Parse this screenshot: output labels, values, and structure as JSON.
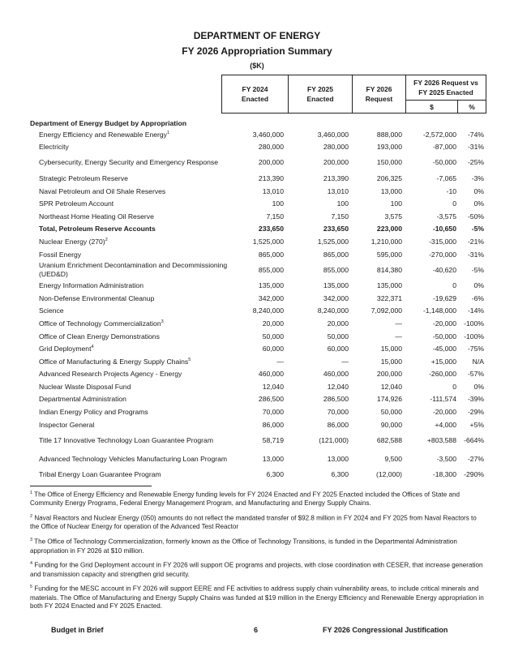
{
  "header": {
    "agency": "DEPARTMENT OF ENERGY",
    "title": "FY 2026 Appropriation Summary",
    "units": "($K)"
  },
  "columns": {
    "fy2024": "FY 2024\nEnacted",
    "fy2025": "FY 2025\nEnacted",
    "fy2026": "FY 2026\nRequest",
    "variance": "FY 2026 Request vs FY 2025 Enacted",
    "var_dollar": "$",
    "var_pct": "%"
  },
  "section_title": "Department of Energy Budget by Appropriation",
  "rows": [
    {
      "label": "Energy Efficiency and Renewable Energy",
      "sup": "1",
      "v": [
        "3,460,000",
        "3,460,000",
        "888,000",
        "-2,572,000",
        "-74%"
      ]
    },
    {
      "label": "Electricity",
      "v": [
        "280,000",
        "280,000",
        "193,000",
        "-87,000",
        "-31%"
      ]
    },
    {
      "label": "Cybersecurity, Energy Security and Emergency Response",
      "two": true,
      "v": [
        "200,000",
        "200,000",
        "150,000",
        "-50,000",
        "-25%"
      ]
    },
    {
      "label": "Strategic Petroleum Reserve",
      "v": [
        "213,390",
        "213,390",
        "206,325",
        "-7,065",
        "-3%"
      ]
    },
    {
      "label": "Naval Petroleum and Oil Shale Reserves",
      "v": [
        "13,010",
        "13,010",
        "13,000",
        "-10",
        "0%"
      ]
    },
    {
      "label": "SPR Petroleum Account",
      "v": [
        "100",
        "100",
        "100",
        "0",
        "0%"
      ]
    },
    {
      "label": "Northeast Home Heating Oil Reserve",
      "v": [
        "7,150",
        "7,150",
        "3,575",
        "-3,575",
        "-50%"
      ]
    },
    {
      "label": "Total, Petroleum Reserve Accounts",
      "bold": true,
      "v": [
        "233,650",
        "233,650",
        "223,000",
        "-10,650",
        "-5%"
      ]
    },
    {
      "label": "Nuclear Energy (270)",
      "sup": "2",
      "v": [
        "1,525,000",
        "1,525,000",
        "1,210,000",
        "-315,000",
        "-21%"
      ]
    },
    {
      "label": "Fossil Energy",
      "v": [
        "865,000",
        "865,000",
        "595,000",
        "-270,000",
        "-31%"
      ]
    },
    {
      "label": "Uranium Enrichment Decontamination and Decommissioning (UED&D)",
      "two": true,
      "v": [
        "855,000",
        "855,000",
        "814,380",
        "-40,620",
        "-5%"
      ]
    },
    {
      "label": "Energy Information Administration",
      "v": [
        "135,000",
        "135,000",
        "135,000",
        "0",
        "0%"
      ]
    },
    {
      "label": "Non-Defense Environmental Cleanup",
      "v": [
        "342,000",
        "342,000",
        "322,371",
        "-19,629",
        "-6%"
      ]
    },
    {
      "label": "Science",
      "v": [
        "8,240,000",
        "8,240,000",
        "7,092,000",
        "-1,148,000",
        "-14%"
      ]
    },
    {
      "label": "Office of Technology Commercialization",
      "sup": "3",
      "v": [
        "20,000",
        "20,000",
        "—",
        "-20,000",
        "-100%"
      ]
    },
    {
      "label": "Office of Clean Energy Demonstrations",
      "v": [
        "50,000",
        "50,000",
        "—",
        "-50,000",
        "-100%"
      ]
    },
    {
      "label": "Grid Deployment",
      "sup": "4",
      "v": [
        "60,000",
        "60,000",
        "15,000",
        "-45,000",
        "-75%"
      ]
    },
    {
      "label": "Office of Manufacturing & Energy Supply Chains",
      "sup": "5",
      "v": [
        "—",
        "—",
        "15,000",
        "+15,000",
        "N/A"
      ]
    },
    {
      "label": "Advanced Research Projects Agency - Energy",
      "v": [
        "460,000",
        "460,000",
        "200,000",
        "-260,000",
        "-57%"
      ]
    },
    {
      "label": "Nuclear Waste Disposal Fund",
      "v": [
        "12,040",
        "12,040",
        "12,040",
        "0",
        "0%"
      ]
    },
    {
      "label": "Departmental Administration",
      "v": [
        "286,500",
        "286,500",
        "174,926",
        "-111,574",
        "-39%"
      ]
    },
    {
      "label": "Indian Energy Policy and Programs",
      "v": [
        "70,000",
        "70,000",
        "50,000",
        "-20,000",
        "-29%"
      ]
    },
    {
      "label": "Inspector General",
      "v": [
        "86,000",
        "86,000",
        "90,000",
        "+4,000",
        "+5%"
      ]
    },
    {
      "label": "Title 17 Innovative Technology Loan Guarantee Program",
      "two": true,
      "v": [
        "58,719",
        "(121,000)",
        "682,588",
        "+803,588",
        "-664%"
      ]
    },
    {
      "label": "Advanced Technology Vehicles Manufacturing Loan Program",
      "two": true,
      "v": [
        "13,000",
        "13,000",
        "9,500",
        "-3,500",
        "-27%"
      ]
    },
    {
      "label": "Tribal Energy Loan Guarantee Program",
      "v": [
        "6,300",
        "6,300",
        "(12,000)",
        "-18,300",
        "-290%"
      ]
    }
  ],
  "footnotes": [
    {
      "mark": "1",
      "text": "The Office of Energy Efficiency and Renewable Energy funding levels for FY 2024 Enacted and FY 2025 Enacted included the Offices of State and Community Energy Programs, Federal Energy Management Program, and Manufacturing and Energy Supply Chains."
    },
    {
      "mark": "2",
      "text": "Naval Reactors and Nuclear Energy (050) amounts do not reflect the mandated transfer of $92.8 million in FY 2024 and FY 2025 from Naval Reactors to the Office of Nuclear Energy for operation of the Advanced Test Reactor"
    },
    {
      "mark": "3",
      "text": "The Office of Technology Commercialization, formerly known as the Office of Technology Transitions, is funded in the Departmental Administration appropriation in FY 2026 at $10 million."
    },
    {
      "mark": "4",
      "text": "Funding for the Grid Deployment account in FY 2026 will support OE programs and projects, with close coordination with CESER, that increase generation and transmission capacity and strengthen grid security."
    },
    {
      "mark": "5",
      "text": "Funding for the MESC account in FY 2026 will support EERE and FE activities to address supply chain vulnerability areas, to include critical minerals and materials. The Office of Manufacturing and Energy Supply Chains was funded at $19 million in the Energy Efficiency and Renewable Energy appropriation in both FY 2024 Enacted and FY 2025 Enacted."
    }
  ],
  "footer": {
    "left": "Budget in Brief",
    "page": "6",
    "right": "FY 2026 Congressional Justification"
  }
}
